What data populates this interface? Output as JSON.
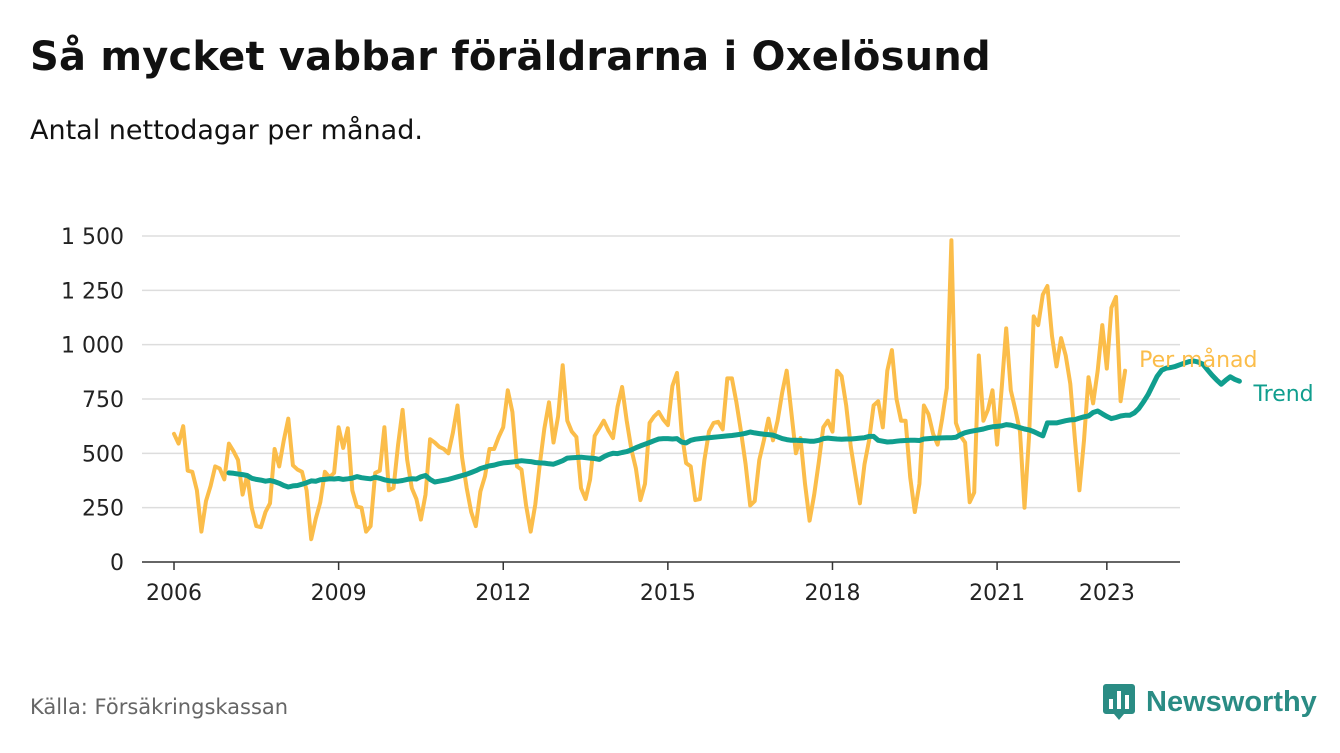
{
  "title": "Så mycket vabbar föräldrarna i Oxelösund",
  "subtitle": "Antal nettodagar per månad.",
  "source": "Källa: Försäkringskassan",
  "brand": {
    "name": "Newsworthy",
    "icon": "bar-chart-icon",
    "color": "#2a8c84"
  },
  "colors": {
    "per_manad": "#fbbd4a",
    "trend": "#109e8e",
    "grid": "#dddddd",
    "axis": "#333333"
  },
  "chart_data": {
    "type": "line",
    "x_unit": "month",
    "ylim": [
      0,
      1500
    ],
    "yticks": [
      0,
      250,
      500,
      750,
      1000,
      1250,
      1500
    ],
    "ytick_labels": [
      "0",
      "250",
      "500",
      "750",
      "1 000",
      "1 250",
      "1 500"
    ],
    "xlim": [
      "2005-06",
      "2024-05"
    ],
    "xticks": [
      "2006-01",
      "2009-01",
      "2012-01",
      "2015-01",
      "2018-01",
      "2021-01",
      "2023-01"
    ],
    "xtick_labels": [
      "2006",
      "2009",
      "2012",
      "2015",
      "2018",
      "2021",
      "2023"
    ],
    "grid": true,
    "legend_placement": "line-end labels",
    "series": [
      {
        "name": "Per månad",
        "color": "#fbbd4a",
        "start": "2006-01",
        "values": [
          590,
          545,
          625,
          420,
          415,
          330,
          140,
          280,
          350,
          440,
          430,
          380,
          545,
          510,
          470,
          310,
          400,
          250,
          165,
          160,
          230,
          270,
          520,
          440,
          560,
          660,
          445,
          425,
          415,
          330,
          105,
          200,
          275,
          415,
          390,
          410,
          620,
          525,
          615,
          330,
          255,
          250,
          140,
          165,
          410,
          420,
          620,
          330,
          340,
          540,
          700,
          470,
          340,
          290,
          195,
          310,
          565,
          550,
          530,
          520,
          500,
          595,
          720,
          480,
          340,
          230,
          165,
          325,
          395,
          520,
          520,
          575,
          620,
          790,
          690,
          440,
          425,
          260,
          140,
          265,
          450,
          615,
          735,
          550,
          670,
          905,
          650,
          600,
          575,
          340,
          290,
          380,
          580,
          615,
          650,
          605,
          570,
          715,
          805,
          650,
          520,
          430,
          285,
          360,
          640,
          670,
          690,
          655,
          630,
          810,
          870,
          600,
          455,
          440,
          285,
          290,
          470,
          600,
          640,
          645,
          610,
          845,
          845,
          735,
          600,
          450,
          260,
          280,
          470,
          560,
          660,
          560,
          650,
          780,
          880,
          690,
          500,
          570,
          360,
          190,
          310,
          460,
          620,
          650,
          600,
          880,
          855,
          720,
          530,
          400,
          270,
          450,
          560,
          720,
          740,
          620,
          880,
          975,
          750,
          650,
          650,
          390,
          230,
          360,
          720,
          680,
          590,
          540,
          660,
          800,
          1480,
          640,
          580,
          550,
          275,
          320,
          950,
          650,
          700,
          790,
          540,
          800,
          1075,
          790,
          700,
          600,
          250,
          580,
          1130,
          1090,
          1230,
          1270,
          1040,
          900,
          1030,
          950,
          820,
          570,
          330,
          560,
          850,
          730,
          880,
          1090,
          890,
          1170,
          1220,
          740,
          880
        ]
      },
      {
        "name": "Trend",
        "color": "#109e8e",
        "start": "2007-01",
        "values": [
          410,
          408,
          405,
          402,
          398,
          385,
          380,
          377,
          372,
          375,
          370,
          362,
          352,
          345,
          350,
          352,
          358,
          365,
          373,
          372,
          378,
          380,
          383,
          382,
          384,
          380,
          383,
          386,
          393,
          388,
          385,
          383,
          390,
          385,
          378,
          374,
          372,
          372,
          375,
          380,
          383,
          382,
          392,
          398,
          380,
          368,
          372,
          376,
          380,
          386,
          392,
          398,
          404,
          412,
          420,
          430,
          436,
          442,
          446,
          452,
          456,
          458,
          460,
          463,
          466,
          464,
          462,
          458,
          456,
          455,
          452,
          450,
          458,
          466,
          478,
          480,
          481,
          482,
          480,
          478,
          476,
          472,
          484,
          494,
          500,
          499,
          504,
          508,
          516,
          526,
          534,
          542,
          550,
          558,
          566,
          568,
          568,
          566,
          568,
          552,
          548,
          560,
          565,
          568,
          570,
          572,
          574,
          576,
          578,
          580,
          582,
          585,
          588,
          592,
          598,
          594,
          591,
          588,
          586,
          584,
          576,
          568,
          563,
          560,
          560,
          559,
          558,
          556,
          556,
          560,
          568,
          570,
          568,
          566,
          565,
          566,
          566,
          568,
          570,
          572,
          578,
          578,
          560,
          556,
          552,
          553,
          556,
          558,
          559,
          560,
          560,
          559,
          566,
          568,
          569,
          570,
          571,
          572,
          572,
          574,
          586,
          595,
          600,
          604,
          608,
          612,
          618,
          622,
          624,
          626,
          632,
          630,
          624,
          618,
          612,
          608,
          600,
          590,
          580,
          640,
          640,
          640,
          645,
          650,
          654,
          655,
          662,
          668,
          672,
          688,
          695,
          682,
          670,
          660,
          665,
          672,
          675,
          675,
          686,
          706,
          736,
          770,
          812,
          854,
          882,
          892,
          895,
          900,
          908,
          915,
          922,
          925,
          920,
          910,
          885,
          860,
          838,
          818,
          836,
          852,
          840,
          832
        ]
      }
    ]
  }
}
